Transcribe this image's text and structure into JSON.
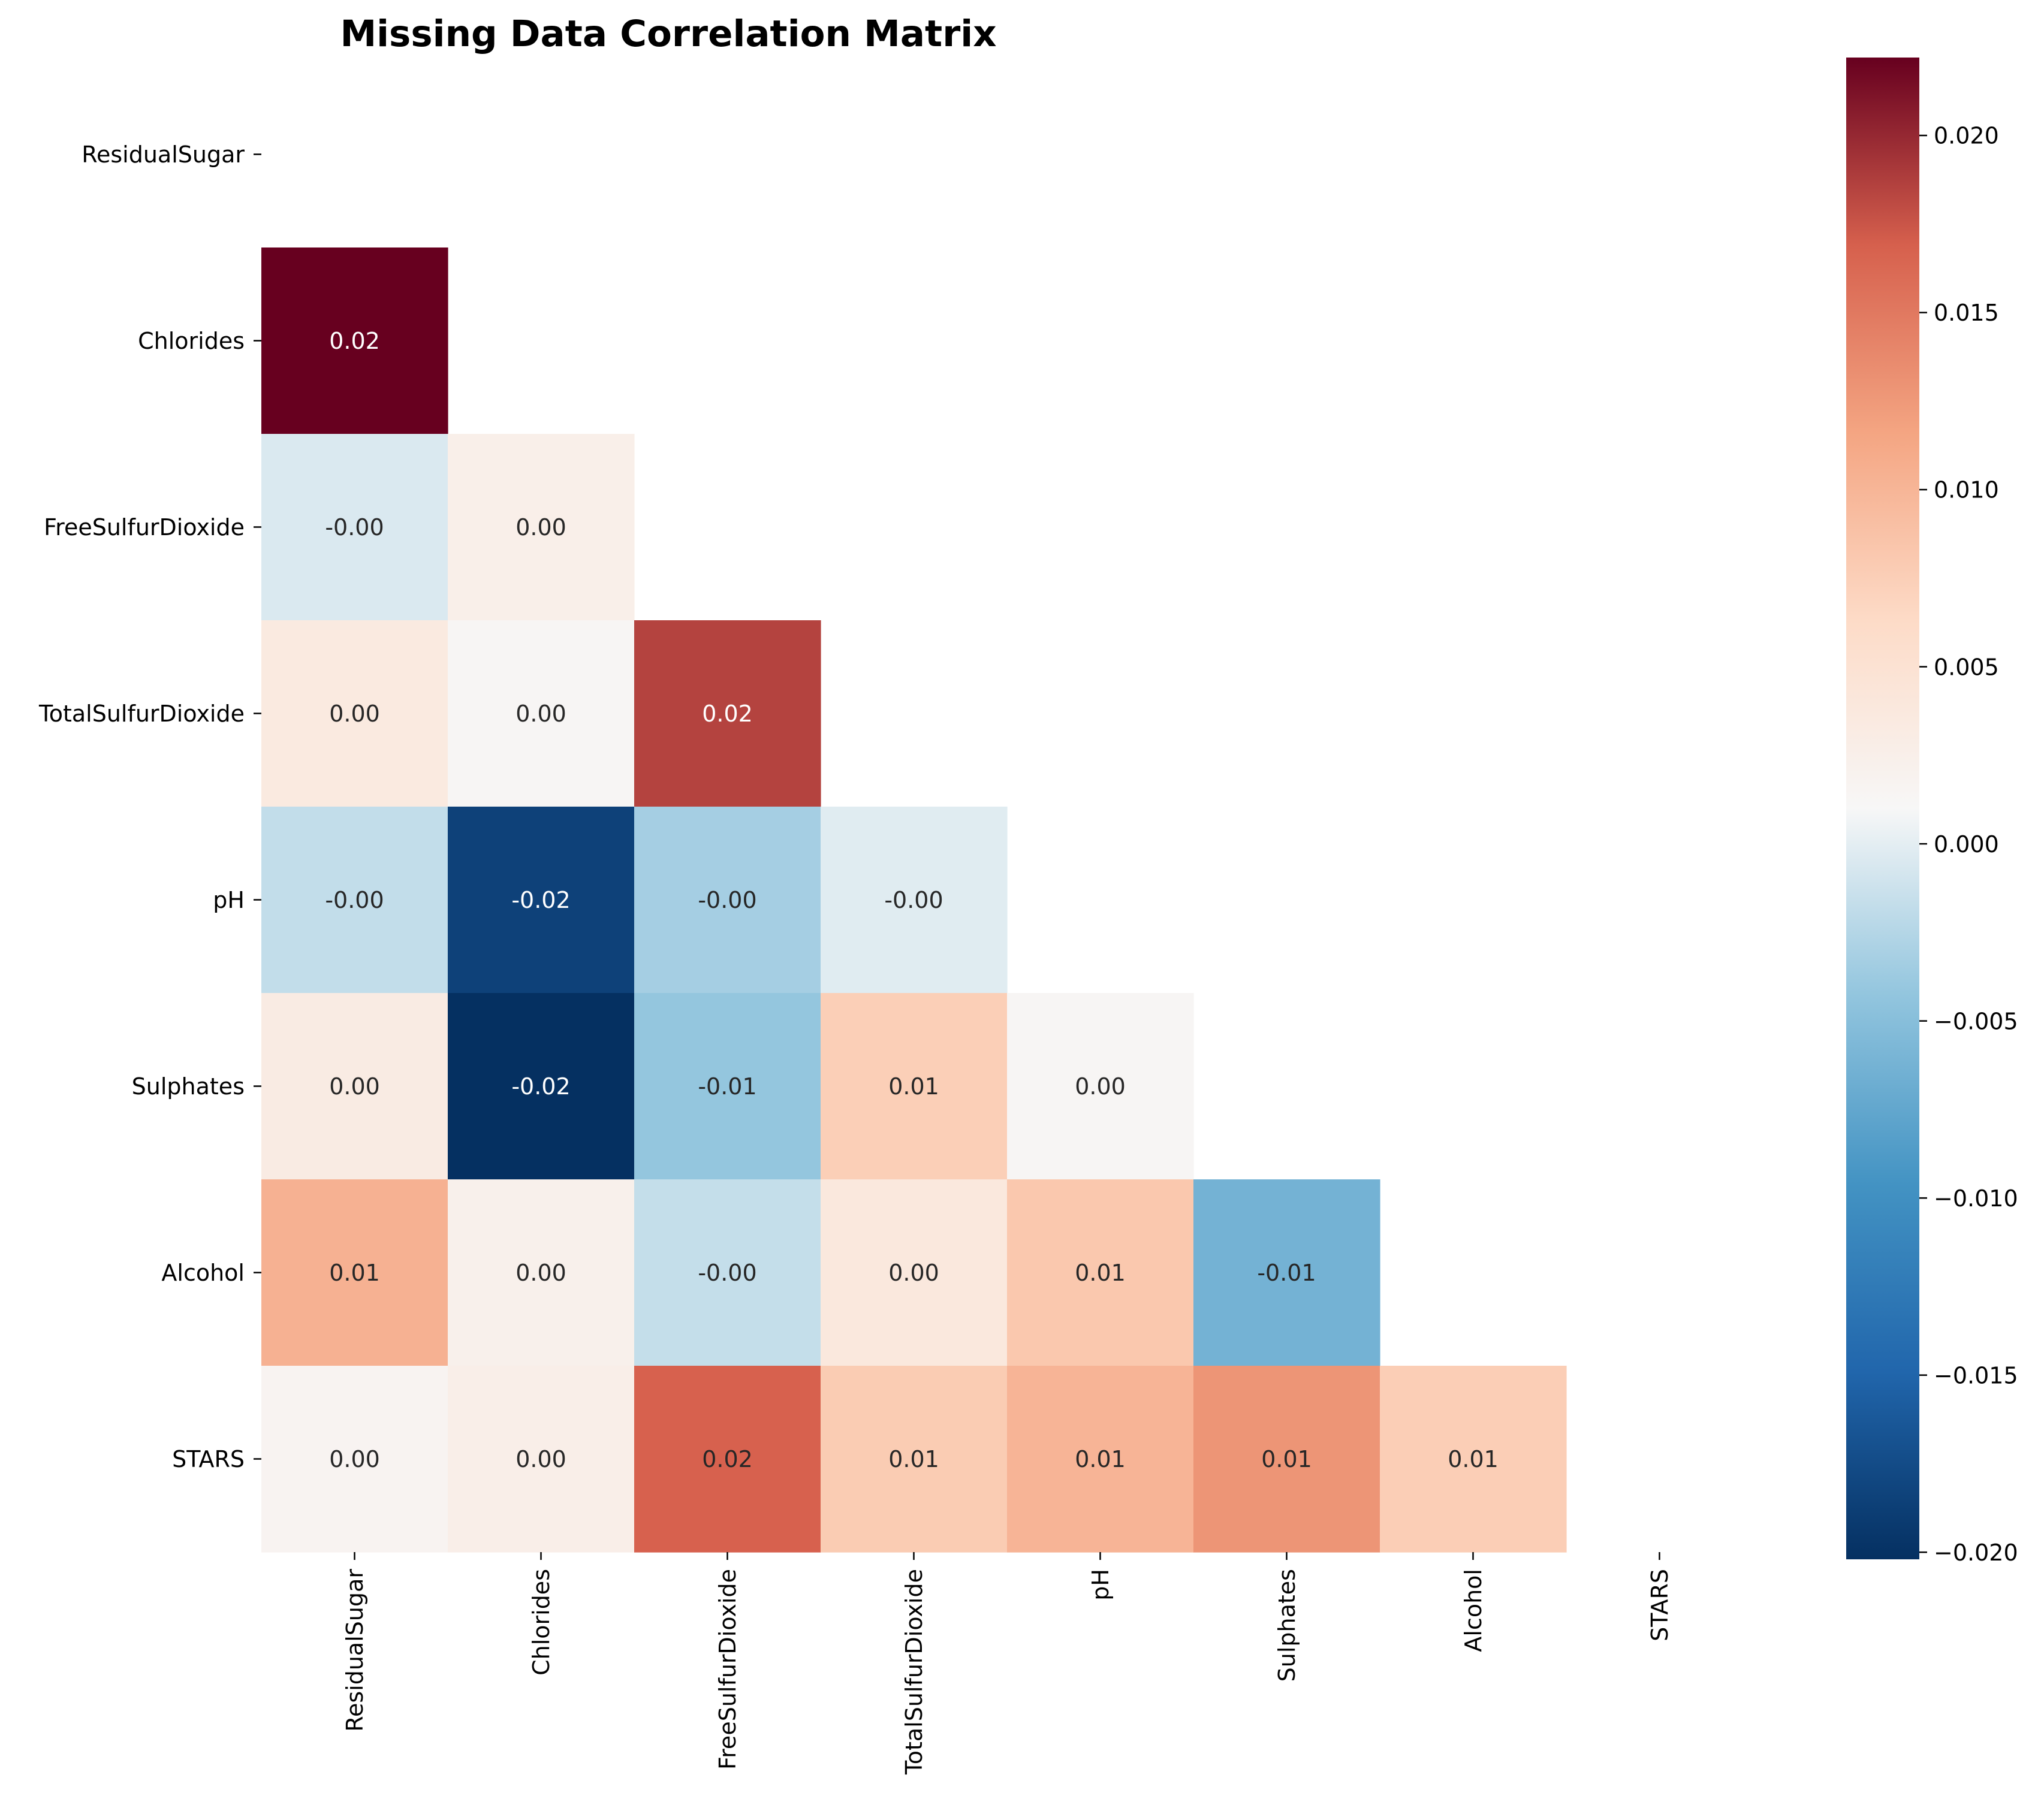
{
  "chart_data": {
    "type": "heatmap",
    "title": "Missing Data Correlation Matrix",
    "xlabel": "",
    "ylabel": "",
    "mask": "upper-triangle-including-diagonal",
    "variables": [
      "ResidualSugar",
      "Chlorides",
      "FreeSulfurDioxide",
      "TotalSulfurDioxide",
      "pH",
      "Sulphates",
      "Alcohol",
      "STARS"
    ],
    "values": [
      [
        null,
        null,
        null,
        null,
        null,
        null,
        null,
        null
      ],
      [
        0.0222,
        null,
        null,
        null,
        null,
        null,
        null,
        null
      ],
      [
        -0.0005,
        0.0025,
        null,
        null,
        null,
        null,
        null,
        null
      ],
      [
        0.0035,
        0.0013,
        0.0185,
        null,
        null,
        null,
        null,
        null
      ],
      [
        -0.0018,
        -0.0185,
        -0.0033,
        -0.0002,
        null,
        null,
        null,
        null
      ],
      [
        0.0032,
        -0.0202,
        -0.0042,
        0.0075,
        0.0013,
        null,
        null,
        null
      ],
      [
        0.0104,
        0.0023,
        -0.0017,
        0.0039,
        0.0082,
        -0.0063,
        null,
        null
      ],
      [
        0.0017,
        0.0027,
        0.0168,
        0.0078,
        0.0101,
        0.0128,
        0.0076,
        null
      ]
    ],
    "cell_labels": [
      [
        "",
        "",
        "",
        "",
        "",
        "",
        "",
        ""
      ],
      [
        "0.02",
        "",
        "",
        "",
        "",
        "",
        "",
        ""
      ],
      [
        "-0.00",
        "0.00",
        "",
        "",
        "",
        "",
        "",
        ""
      ],
      [
        "0.00",
        "0.00",
        "0.02",
        "",
        "",
        "",
        "",
        ""
      ],
      [
        "-0.00",
        "-0.02",
        "-0.00",
        "-0.00",
        "",
        "",
        "",
        ""
      ],
      [
        "0.00",
        "-0.02",
        "-0.01",
        "0.01",
        "0.00",
        "",
        "",
        ""
      ],
      [
        "0.01",
        "0.00",
        "-0.00",
        "0.00",
        "0.01",
        "-0.01",
        "",
        ""
      ],
      [
        "0.00",
        "0.00",
        "0.02",
        "0.01",
        "0.01",
        "0.01",
        "0.01",
        ""
      ]
    ],
    "colormap": "RdBu_r",
    "vmin": -0.0202,
    "vmax": 0.0222,
    "colorbar_ticks": [
      0.02,
      0.015,
      0.01,
      0.005,
      0.0,
      -0.005,
      -0.01,
      -0.015,
      -0.02
    ],
    "colorbar_tick_labels": [
      "0.020",
      "0.015",
      "0.010",
      "0.005",
      "0.000",
      "−0.005",
      "−0.010",
      "−0.015",
      "−0.020"
    ],
    "grid": false,
    "legend": "colorbar-right"
  }
}
